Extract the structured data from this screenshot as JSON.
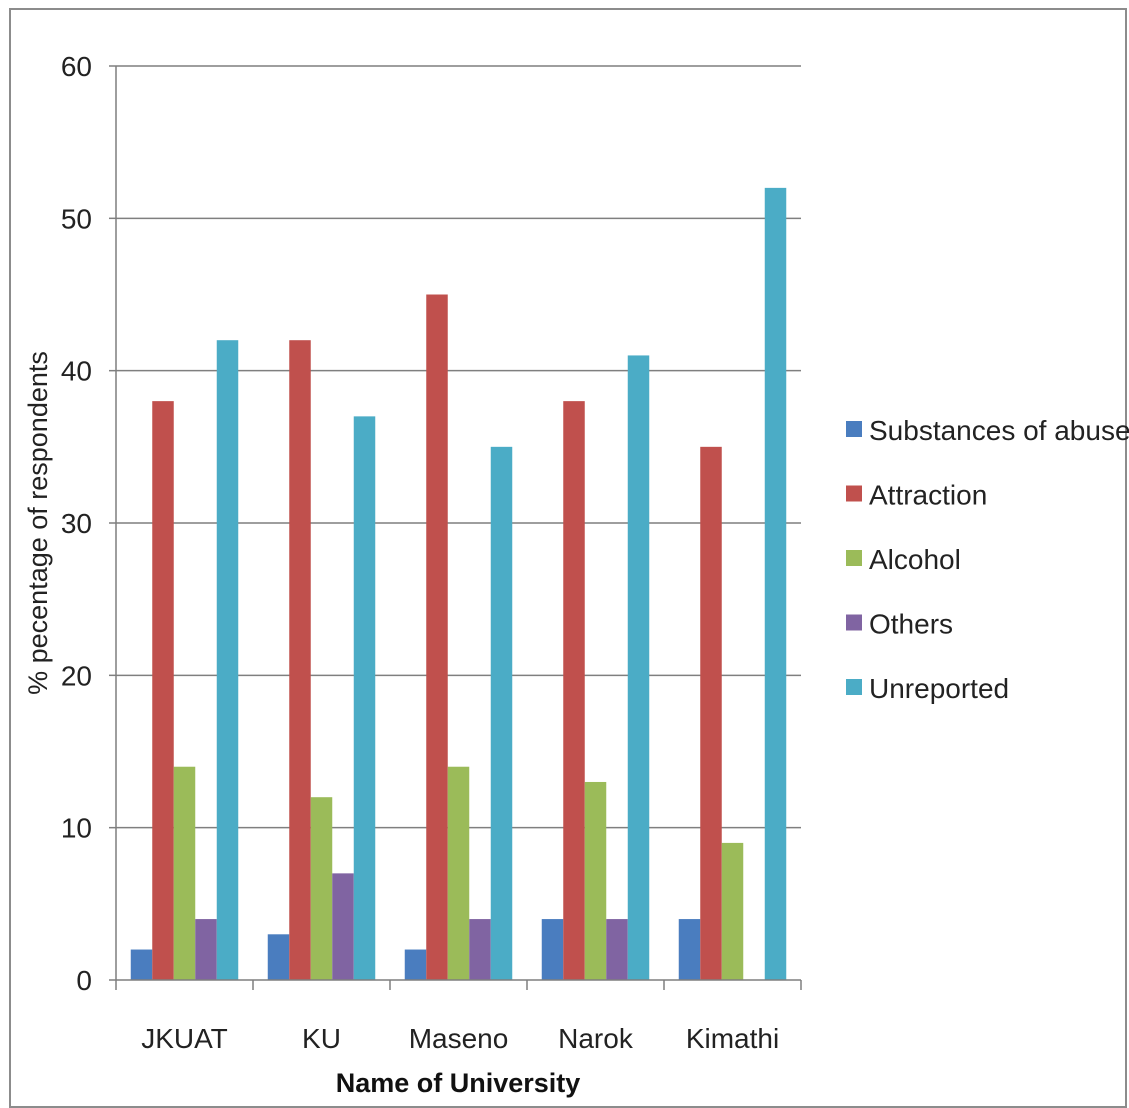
{
  "chart_data": {
    "type": "bar",
    "title": "",
    "xlabel": "Name of University",
    "ylabel": "% pecentage of respondents",
    "ylim": [
      0,
      60
    ],
    "yticks": [
      0,
      10,
      20,
      30,
      40,
      50,
      60
    ],
    "grid": true,
    "legend_position": "right",
    "categories": [
      "JKUAT",
      "KU",
      "Maseno",
      "Narok",
      "Kimathi"
    ],
    "series": [
      {
        "name": "Substances of abuse",
        "color": "#4a7dbf",
        "values": [
          2,
          3,
          2,
          4,
          4
        ]
      },
      {
        "name": "Attraction",
        "color": "#c0504d",
        "values": [
          38,
          42,
          45,
          38,
          35
        ]
      },
      {
        "name": "Alcohol",
        "color": "#9bbb59",
        "values": [
          14,
          12,
          14,
          13,
          9
        ]
      },
      {
        "name": "Others",
        "color": "#8064a2",
        "values": [
          4,
          7,
          4,
          4,
          0
        ]
      },
      {
        "name": "Unreported",
        "color": "#4bacc6",
        "values": [
          42,
          37,
          35,
          41,
          52
        ]
      }
    ]
  }
}
